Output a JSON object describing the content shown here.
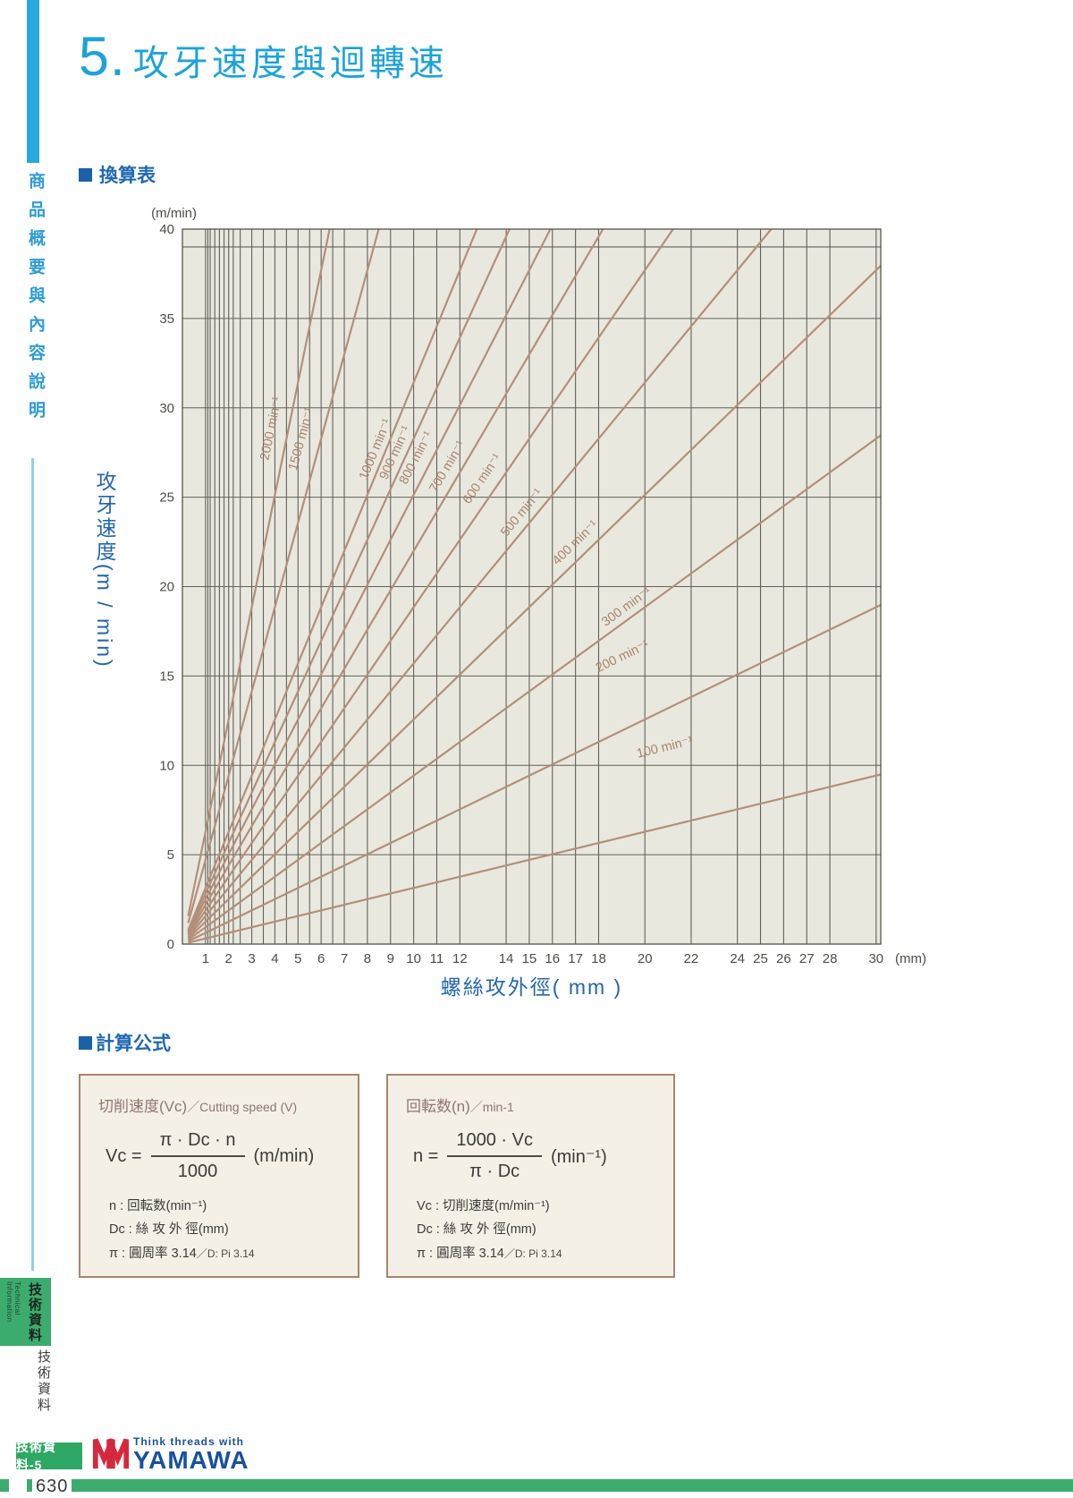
{
  "page_title": {
    "number": "5.",
    "text": "攻牙速度與迴轉速"
  },
  "sidebar": {
    "top_label": "商品概要與內容說明",
    "tab_cjk": "技術資料",
    "tab_en": "Technical Information",
    "bottom_label": "技術資料"
  },
  "sections": {
    "conversion": "換算表",
    "formula": "計算公式"
  },
  "chart_data": {
    "type": "line",
    "title": "換算表",
    "xlabel": "螺絲攻外徑( mm )",
    "ylabel": "攻牙速度(m / min)",
    "x_unit_label": "(mm)",
    "y_unit_label": "(m/min)",
    "xlim": [
      0,
      30.2
    ],
    "ylim": [
      0,
      40
    ],
    "grid": true,
    "relation": "Vc = pi * Dc * n / 1000  (m/min)",
    "x_tick_labels": [
      1,
      2,
      3,
      4,
      5,
      6,
      7,
      8,
      9,
      10,
      11,
      12,
      14,
      15,
      16,
      17,
      18,
      20,
      22,
      24,
      25,
      26,
      27,
      28,
      30
    ],
    "x_gridlines": [
      1,
      1.1,
      1.2,
      1.4,
      1.6,
      1.8,
      2,
      2.2,
      2.5,
      3,
      3.5,
      4,
      4.5,
      5,
      5.5,
      6,
      6.5,
      7,
      8,
      9,
      10,
      11,
      12,
      14,
      15,
      16,
      17,
      18,
      20,
      22,
      24,
      25,
      26,
      27,
      28,
      30
    ],
    "y_ticks": [
      0,
      5,
      10,
      15,
      20,
      25,
      30,
      35,
      40
    ],
    "extra_y_gridlines": [
      39
    ],
    "line_start_x": 0.25,
    "series": [
      {
        "n": 2000,
        "label": "2000 min⁻¹",
        "label_at": [
          4.0,
          28.8
        ]
      },
      {
        "n": 1500,
        "label": "1500 min⁻¹",
        "label_at": [
          5.3,
          28.2
        ]
      },
      {
        "n": 1000,
        "label": "1000 min⁻¹",
        "label_at": [
          8.5,
          27.6
        ]
      },
      {
        "n": 900,
        "label": "900 min⁻¹",
        "label_at": [
          9.35,
          27.4
        ]
      },
      {
        "n": 800,
        "label": "800 min⁻¹",
        "label_at": [
          10.25,
          27.1
        ]
      },
      {
        "n": 700,
        "label": "700 min⁻¹",
        "label_at": [
          11.6,
          26.6
        ]
      },
      {
        "n": 600,
        "label": "600 min⁻¹",
        "label_at": [
          13.1,
          25.9
        ]
      },
      {
        "n": 500,
        "label": "500 min⁻¹",
        "label_at": [
          14.8,
          24.0
        ]
      },
      {
        "n": 400,
        "label": "400 min⁻¹",
        "label_at": [
          17.1,
          22.3
        ]
      },
      {
        "n": 300,
        "label": "300 min⁻¹",
        "label_at": [
          19.3,
          18.7
        ]
      },
      {
        "n": 200,
        "label": "200 min⁻¹",
        "label_at": [
          19.1,
          15.9
        ]
      },
      {
        "n": 100,
        "label": "100 min⁻¹",
        "label_at": [
          20.9,
          10.8
        ]
      }
    ],
    "colors": {
      "bg": "#e9e8df",
      "grid": "#61615a",
      "border": "#54544c",
      "line": "#b28f7a",
      "series_label": "#a9836d",
      "tick": "#4c4c46"
    }
  },
  "formulas": {
    "boxes": [
      {
        "header_main": "切削速度(Vc)",
        "header_rest": "／Cutting speed (V)",
        "lhs": "Vc =",
        "numerator": "π · Dc · n",
        "denominator": "1000",
        "unit": "(m/min)",
        "vars": [
          {
            "t": "n : 回転数(min⁻¹)",
            "note": ""
          },
          {
            "t": "Dc : 絲 攻 外 徑(mm)",
            "note": ""
          },
          {
            "t": "π : 圓周率 3.14",
            "note": "／D: Pi 3.14"
          }
        ]
      },
      {
        "header_main": "回転数(n)",
        "header_rest": "／min-1",
        "lhs": "n  =",
        "numerator": "1000 · Vc",
        "denominator": "π · Dc",
        "unit": "(min⁻¹)",
        "vars": [
          {
            "t": "Vc : 切削速度(m/min⁻¹)",
            "note": ""
          },
          {
            "t": "Dc : 絲 攻 外 徑(mm)",
            "note": ""
          },
          {
            "t": "π : 圓周率 3.14",
            "note": "／D: Pi 3.14"
          }
        ]
      }
    ]
  },
  "footer": {
    "badge": "技術資料-5",
    "tagline": "Think threads with",
    "brand": "YAMAWA",
    "page_number": "630"
  }
}
